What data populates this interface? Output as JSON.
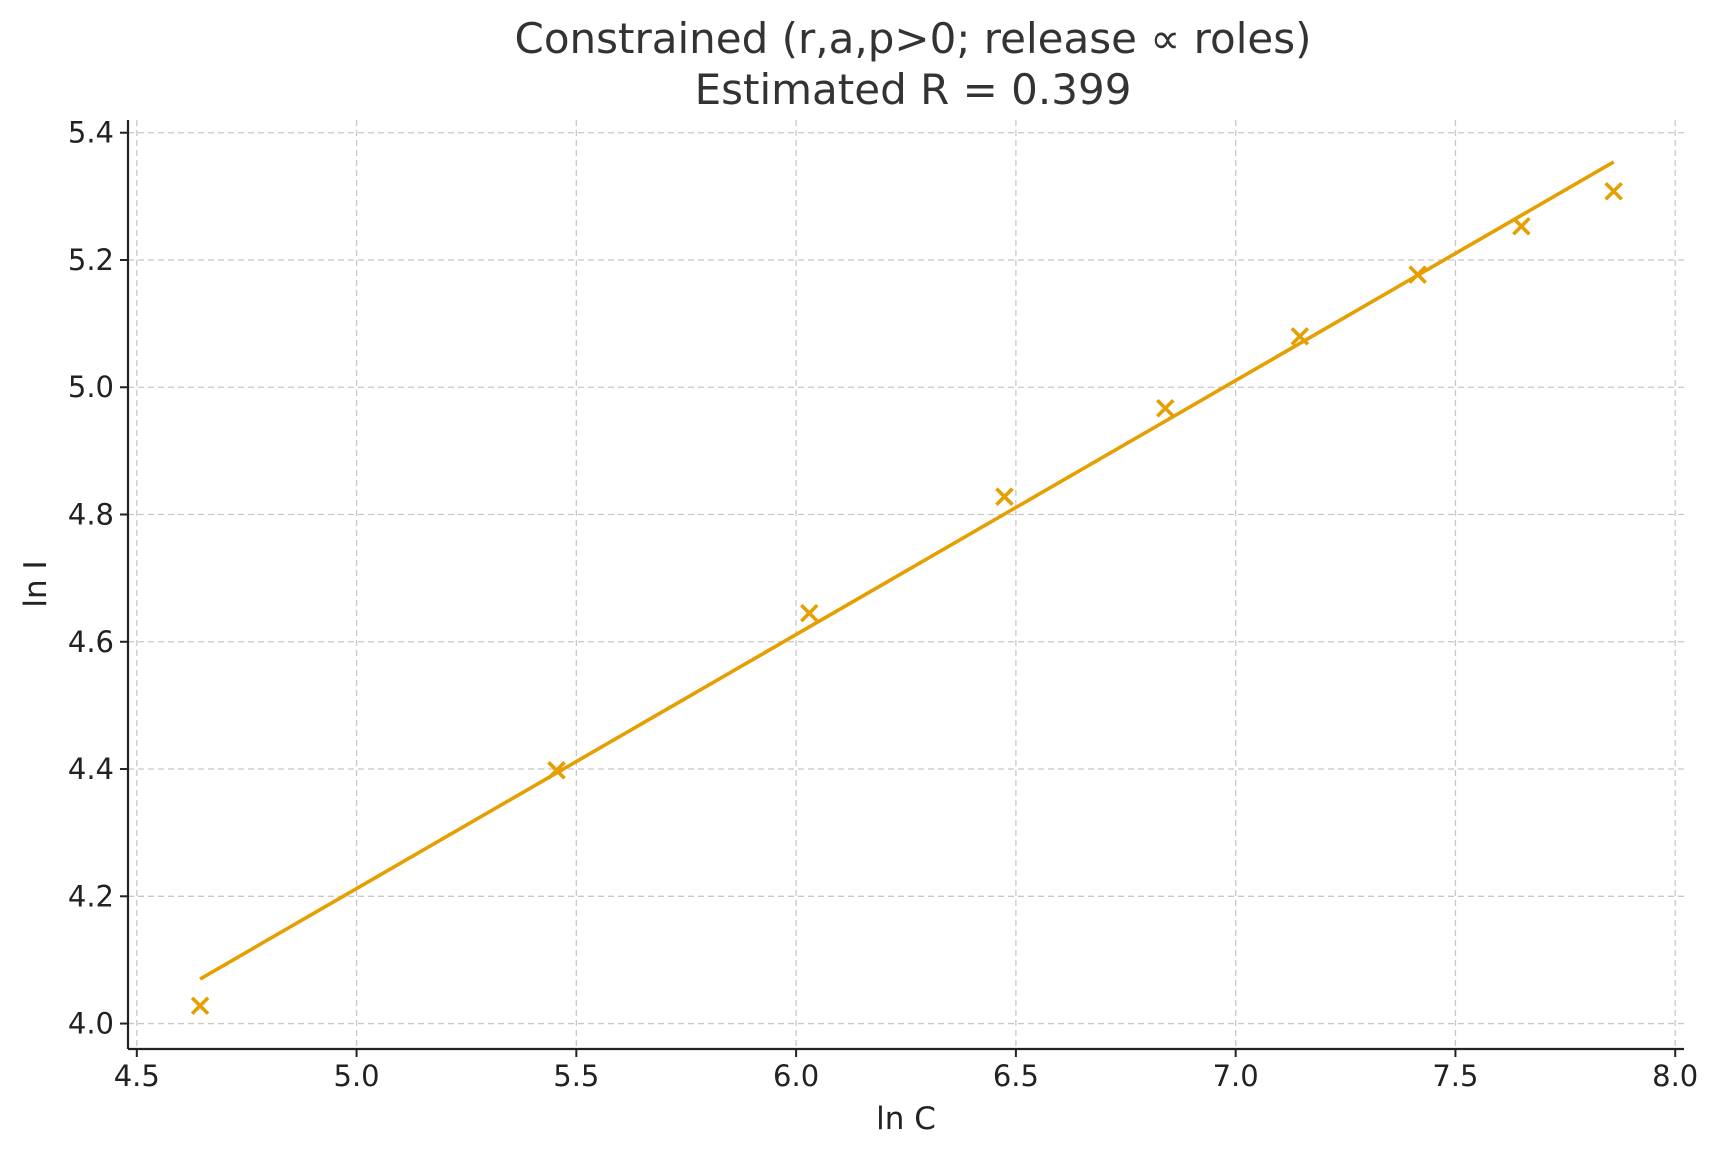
{
  "chart_data": {
    "type": "scatter",
    "title_line1": "Constrained (r,a,p>0; release ∝ roles)",
    "title_line2": "Estimated R = 0.399",
    "xlabel": "ln C",
    "ylabel": "ln I",
    "xlim": [
      4.48,
      8.02
    ],
    "ylim": [
      3.96,
      5.42
    ],
    "xticks": [
      4.5,
      5.0,
      5.5,
      6.0,
      6.5,
      7.0,
      7.5,
      8.0
    ],
    "xtick_labels": [
      "4.5",
      "5.0",
      "5.5",
      "6.0",
      "6.5",
      "7.0",
      "7.5",
      "8.0"
    ],
    "yticks": [
      4.0,
      4.2,
      4.4,
      4.6,
      4.8,
      5.0,
      5.2,
      5.4
    ],
    "ytick_labels": [
      "4.0",
      "4.2",
      "4.4",
      "4.6",
      "4.8",
      "5.0",
      "5.2",
      "5.4"
    ],
    "grid": true,
    "color": "#E69F00",
    "series": [
      {
        "kind": "scatter",
        "marker": "x",
        "x": [
          4.644,
          5.455,
          6.03,
          6.474,
          6.84,
          7.146,
          7.414,
          7.65,
          7.86
        ],
        "y": [
          4.028,
          4.398,
          4.645,
          4.828,
          4.967,
          5.08,
          5.177,
          5.253,
          5.308
        ]
      },
      {
        "kind": "line",
        "x": [
          4.644,
          7.86
        ],
        "y": [
          4.07,
          5.354
        ]
      }
    ]
  }
}
